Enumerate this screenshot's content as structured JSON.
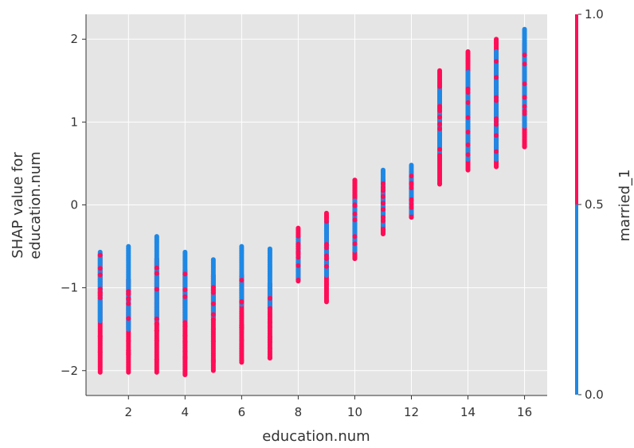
{
  "chart_data": {
    "type": "scatter",
    "title": "",
    "xlabel": "education.num",
    "ylabel_lines": [
      "SHAP value for",
      "education.num"
    ],
    "xlim": [
      0.5,
      16.8
    ],
    "ylim": [
      -2.3,
      2.3
    ],
    "xticks": [
      2,
      4,
      6,
      8,
      10,
      12,
      14,
      16
    ],
    "yticks": [
      -2,
      -1,
      0,
      1,
      2
    ],
    "ytick_labels": [
      "−2",
      "−1",
      "0",
      "1",
      "2"
    ],
    "grid": true,
    "colorbar": {
      "label": "married_1",
      "ticks": [
        0.0,
        0.5,
        1.0
      ],
      "tick_labels": [
        "0.0",
        "0.5",
        "1.0"
      ],
      "low_color": "#1e88e5",
      "high_color": "#ff0d57"
    },
    "series": [
      {
        "color_value": 1,
        "stripes": [
          {
            "x": 1,
            "y": [
              -2.02,
              -0.6
            ]
          },
          {
            "x": 2,
            "y": [
              -2.02,
              -0.9
            ]
          },
          {
            "x": 3,
            "y": [
              -2.02,
              -0.65
            ]
          },
          {
            "x": 4,
            "y": [
              -2.05,
              -0.8
            ]
          },
          {
            "x": 5,
            "y": [
              -2.0,
              -0.85
            ]
          },
          {
            "x": 6,
            "y": [
              -1.9,
              -0.85
            ]
          },
          {
            "x": 7,
            "y": [
              -1.85,
              -0.95
            ]
          },
          {
            "x": 8,
            "y": [
              -0.92,
              -0.28
            ]
          },
          {
            "x": 9,
            "y": [
              -1.17,
              -0.1
            ]
          },
          {
            "x": 10,
            "y": [
              -0.65,
              0.3
            ]
          },
          {
            "x": 11,
            "y": [
              -0.35,
              0.3
            ]
          },
          {
            "x": 12,
            "y": [
              -0.15,
              0.35
            ]
          },
          {
            "x": 13,
            "y": [
              0.25,
              1.62
            ]
          },
          {
            "x": 14,
            "y": [
              0.42,
              1.85
            ]
          },
          {
            "x": 15,
            "y": [
              0.46,
              2.0
            ]
          },
          {
            "x": 16,
            "y": [
              0.7,
              1.95
            ]
          }
        ]
      },
      {
        "color_value": 0,
        "stripes": [
          {
            "x": 1,
            "y": [
              -1.4,
              -0.57
            ]
          },
          {
            "x": 2,
            "y": [
              -1.5,
              -0.5
            ]
          },
          {
            "x": 3,
            "y": [
              -1.4,
              -0.38
            ]
          },
          {
            "x": 4,
            "y": [
              -1.4,
              -0.57
            ]
          },
          {
            "x": 5,
            "y": [
              -1.35,
              -0.66
            ]
          },
          {
            "x": 6,
            "y": [
              -1.2,
              -0.5
            ]
          },
          {
            "x": 7,
            "y": [
              -1.25,
              -0.53
            ]
          },
          {
            "x": 8,
            "y": [
              -0.9,
              -0.38
            ]
          },
          {
            "x": 9,
            "y": [
              -0.85,
              -0.2
            ]
          },
          {
            "x": 10,
            "y": [
              -0.55,
              0.05
            ]
          },
          {
            "x": 11,
            "y": [
              -0.25,
              0.42
            ]
          },
          {
            "x": 12,
            "y": [
              -0.1,
              0.48
            ]
          },
          {
            "x": 13,
            "y": [
              0.6,
              1.42
            ]
          },
          {
            "x": 14,
            "y": [
              0.55,
              1.6
            ]
          },
          {
            "x": 15,
            "y": [
              0.55,
              1.85
            ]
          },
          {
            "x": 16,
            "y": [
              0.95,
              2.12
            ]
          }
        ]
      }
    ]
  }
}
